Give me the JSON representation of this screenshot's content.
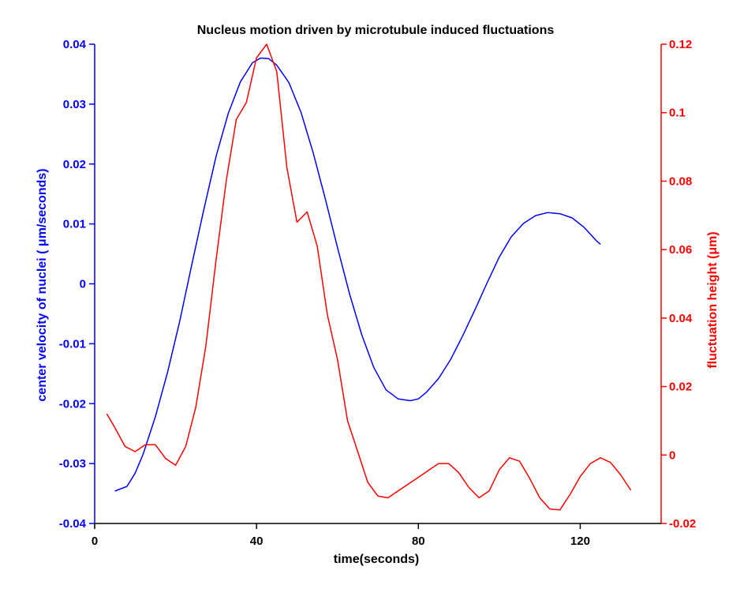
{
  "chart_data": {
    "type": "line",
    "title": "Nucleus motion driven by microtubule induced fluctuations",
    "xlabel": "time(seconds)",
    "ylabel_left": "center velocity of nuclei ( μm/seconds)",
    "ylabel_right": "fluctuation height (μm)",
    "xlim": [
      0,
      140
    ],
    "ylim_left": [
      -0.04,
      0.04
    ],
    "ylim_right": [
      -0.02,
      0.12
    ],
    "xticks": [
      0,
      40,
      80,
      120
    ],
    "xtick_labels": [
      "0",
      "40",
      "80",
      "120"
    ],
    "yticks_left": [
      -0.04,
      -0.03,
      -0.02,
      -0.01,
      0,
      0.01,
      0.02,
      0.03,
      0.04
    ],
    "ytick_labels_left": [
      "-0.04",
      "-0.03",
      "-0.02",
      "-0.01",
      "0",
      "0.01",
      "0.02",
      "0.03",
      "0.04"
    ],
    "yticks_right": [
      -0.02,
      0,
      0.02,
      0.04,
      0.06,
      0.08,
      0.1,
      0.12
    ],
    "ytick_labels_right": [
      "-0.02",
      "0",
      "0.02",
      "0.04",
      "0.06",
      "0.08",
      "0.1",
      "0.12"
    ],
    "colors": {
      "left": "#0000ff",
      "right": "#ff0000",
      "axes": "#000000"
    },
    "series": [
      {
        "name": "center velocity of nuclei",
        "axis": "left",
        "color": "#0000ff",
        "x": [
          5,
          8,
          10,
          12,
          15,
          18,
          21,
          24,
          27,
          30,
          33,
          36,
          39,
          41,
          43,
          45,
          48,
          51,
          54,
          57,
          60,
          63,
          66,
          69,
          72,
          75,
          78,
          80,
          82,
          85,
          88,
          91,
          94,
          97,
          100,
          103,
          106,
          109,
          112,
          115,
          118,
          121,
          124,
          125
        ],
        "y": [
          -0.0346,
          -0.0338,
          -0.0316,
          -0.0284,
          -0.0222,
          -0.0148,
          -0.0063,
          0.0032,
          0.0125,
          0.0213,
          0.0284,
          0.0337,
          0.0369,
          0.0377,
          0.0376,
          0.0365,
          0.0336,
          0.0286,
          0.0219,
          0.0142,
          0.0061,
          -0.0017,
          -0.0085,
          -0.014,
          -0.0177,
          -0.0192,
          -0.0195,
          -0.0192,
          -0.0181,
          -0.0158,
          -0.0126,
          -0.0086,
          -0.0043,
          0.0002,
          0.0045,
          0.0079,
          0.0101,
          0.0114,
          0.0119,
          0.0117,
          0.011,
          0.0094,
          0.0072,
          0.0066
        ]
      },
      {
        "name": "fluctuation height",
        "axis": "right",
        "color": "#ff0000",
        "x": [
          3,
          5,
          7.5,
          10,
          12.5,
          15,
          17.5,
          20,
          22.5,
          25,
          27.5,
          30,
          32.5,
          35,
          37.5,
          40,
          42.5,
          45,
          47.5,
          50,
          52.5,
          55,
          57.5,
          60,
          62.5,
          65,
          67.5,
          70,
          72.5,
          75,
          77.5,
          80,
          82.5,
          85,
          87.5,
          90,
          92.5,
          95,
          97.5,
          100,
          102.5,
          105,
          107.5,
          110,
          112.5,
          115,
          117.5,
          120,
          122.5,
          125,
          127.5,
          130,
          132.5
        ],
        "y": [
          0.012,
          0.008,
          0.0025,
          0.001,
          0.003,
          0.003,
          -0.001,
          -0.003,
          0.0025,
          0.014,
          0.032,
          0.057,
          0.08,
          0.098,
          0.103,
          0.116,
          0.12,
          0.112,
          0.084,
          0.068,
          0.071,
          0.061,
          0.041,
          0.028,
          0.01,
          0.001,
          -0.008,
          -0.012,
          -0.0125,
          -0.0105,
          -0.0085,
          -0.0065,
          -0.0045,
          -0.0025,
          -0.0025,
          -0.0052,
          -0.0095,
          -0.0125,
          -0.0105,
          -0.0043,
          -0.0008,
          -0.0018,
          -0.0068,
          -0.0125,
          -0.0158,
          -0.016,
          -0.0115,
          -0.0063,
          -0.0025,
          -0.0008,
          -0.0022,
          -0.0058,
          -0.0103
        ]
      }
    ]
  }
}
